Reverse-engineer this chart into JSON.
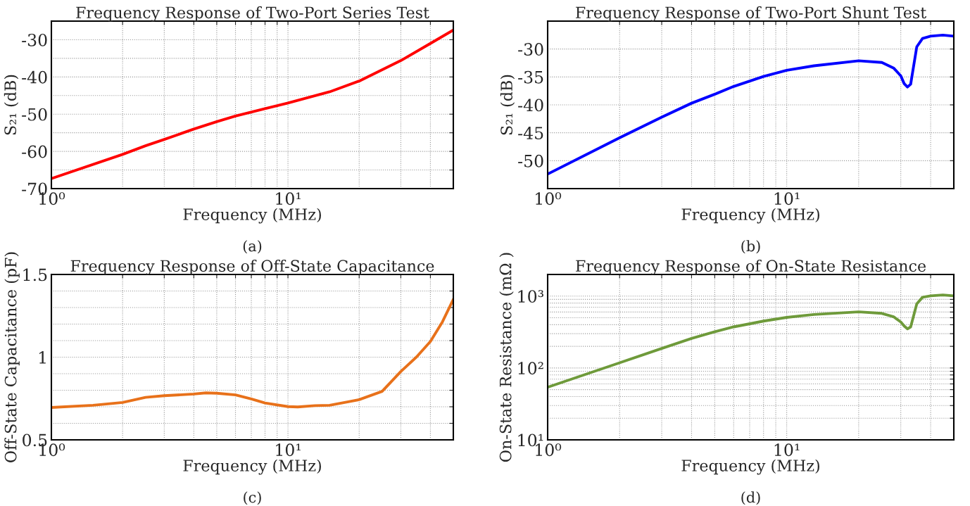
{
  "chart_data": [
    {
      "type": "line",
      "title": "Frequency Response of Two-Port Series Test",
      "xlabel": "Frequency (MHz)",
      "ylabel": "S₂₁ (dB)",
      "annotations": [
        "(a)"
      ],
      "log": "x",
      "grid": true,
      "legend": false,
      "xlim": [
        1,
        50
      ],
      "xticks": [
        {
          "value": 1,
          "label": "10⁰"
        },
        {
          "value": 2,
          "label": null
        },
        {
          "value": 3,
          "label": null
        },
        {
          "value": 4,
          "label": null
        },
        {
          "value": 5,
          "label": null
        },
        {
          "value": 6,
          "label": null
        },
        {
          "value": 7,
          "label": null
        },
        {
          "value": 8,
          "label": null
        },
        {
          "value": 9,
          "label": null
        },
        {
          "value": 10,
          "label": "10¹"
        },
        {
          "value": 20,
          "label": null
        },
        {
          "value": 30,
          "label": null
        },
        {
          "value": 40,
          "label": null
        }
      ],
      "ylim": [
        -70,
        -25
      ],
      "yticks": [
        -70,
        {
          "value": -65,
          "label": null
        },
        -60,
        {
          "value": -55,
          "label": null
        },
        -50,
        {
          "value": -45,
          "label": null
        },
        -40,
        {
          "value": -35,
          "label": null
        },
        -30
      ],
      "series": [
        {
          "color": "#ff0000",
          "x": [
            1,
            2,
            2.5,
            3,
            4,
            5,
            6,
            8,
            10,
            15,
            20,
            30,
            40,
            50
          ],
          "values": [
            -67.3,
            -60.8,
            -58.5,
            -56.8,
            -54.0,
            -52.0,
            -50.5,
            -48.5,
            -47.0,
            -44.0,
            -41.1,
            -35.6,
            -31.0,
            -27.4
          ]
        }
      ]
    },
    {
      "type": "line",
      "title": "Frequency Response of Two-Port Shunt Test",
      "xlabel": "Frequency (MHz)",
      "ylabel": "S₂₁ (dB)",
      "annotations": [
        "(b)"
      ],
      "log": "x",
      "grid": true,
      "legend": false,
      "xlim": [
        1,
        50
      ],
      "xticks": [
        {
          "value": 1,
          "label": "10⁰"
        },
        {
          "value": 2,
          "label": null
        },
        {
          "value": 3,
          "label": null
        },
        {
          "value": 4,
          "label": null
        },
        {
          "value": 5,
          "label": null
        },
        {
          "value": 6,
          "label": null
        },
        {
          "value": 7,
          "label": null
        },
        {
          "value": 8,
          "label": null
        },
        {
          "value": 9,
          "label": null
        },
        {
          "value": 10,
          "label": "10¹"
        },
        {
          "value": 20,
          "label": null
        },
        {
          "value": 30,
          "label": null
        },
        {
          "value": 40,
          "label": null
        }
      ],
      "ylim": [
        -55,
        -25
      ],
      "yticks": [
        -50,
        -45,
        -40,
        -35,
        -30
      ],
      "series": [
        {
          "color": "#0000ff",
          "x": [
            1,
            2,
            3,
            4,
            5,
            6,
            8,
            10,
            13,
            20,
            25,
            28,
            30,
            31,
            32,
            33,
            35,
            37,
            40,
            45,
            50
          ],
          "values": [
            -52.4,
            -45.9,
            -42.2,
            -39.7,
            -38.1,
            -36.7,
            -34.9,
            -33.8,
            -33.0,
            -32.1,
            -32.4,
            -33.4,
            -34.8,
            -36.2,
            -36.8,
            -36.3,
            -29.6,
            -28.1,
            -27.7,
            -27.5,
            -27.7
          ]
        }
      ]
    },
    {
      "type": "line",
      "title": "Frequency Response of Off-State Capacitance",
      "xlabel": "Frequency (MHz)",
      "ylabel": "Off-State Capacitance (pF)",
      "annotations": [
        "(c)"
      ],
      "log": "x",
      "grid": true,
      "legend": false,
      "xlim": [
        1,
        50
      ],
      "xticks": [
        {
          "value": 1,
          "label": "10⁰"
        },
        {
          "value": 2,
          "label": null
        },
        {
          "value": 3,
          "label": null
        },
        {
          "value": 4,
          "label": null
        },
        {
          "value": 5,
          "label": null
        },
        {
          "value": 6,
          "label": null
        },
        {
          "value": 7,
          "label": null
        },
        {
          "value": 8,
          "label": null
        },
        {
          "value": 9,
          "label": null
        },
        {
          "value": 10,
          "label": "10¹"
        },
        {
          "value": 20,
          "label": null
        },
        {
          "value": 30,
          "label": null
        },
        {
          "value": 40,
          "label": null
        }
      ],
      "ylim": [
        0.5,
        1.5
      ],
      "yticks": [
        0.5,
        {
          "value": 0.6,
          "label": null
        },
        {
          "value": 0.7,
          "label": null
        },
        {
          "value": 0.8,
          "label": null
        },
        {
          "value": 0.9,
          "label": null
        },
        1,
        {
          "value": 1.1,
          "label": null
        },
        {
          "value": 1.2,
          "label": null
        },
        {
          "value": 1.3,
          "label": null
        },
        {
          "value": 1.4,
          "label": null
        },
        1.5
      ],
      "series": [
        {
          "color": "#e8711a",
          "x": [
            1,
            1.5,
            2,
            2.5,
            3,
            4,
            4.5,
            5,
            6,
            7,
            8,
            10,
            11,
            13,
            15,
            18,
            20,
            25,
            30,
            35,
            40,
            45,
            50
          ],
          "values": [
            0.696,
            0.709,
            0.726,
            0.757,
            0.767,
            0.777,
            0.784,
            0.782,
            0.772,
            0.747,
            0.723,
            0.701,
            0.699,
            0.707,
            0.709,
            0.73,
            0.743,
            0.793,
            0.913,
            1.002,
            1.095,
            1.214,
            1.35
          ]
        }
      ]
    },
    {
      "type": "line",
      "title": "Frequency Response of On-State Resistance",
      "xlabel": "Frequency (MHz)",
      "ylabel": "On-State Resistance (mΩ )",
      "annotations": [
        "(d)"
      ],
      "log": "xy",
      "grid": true,
      "legend": false,
      "xlim": [
        1,
        50
      ],
      "xticks": [
        {
          "value": 1,
          "label": "10⁰"
        },
        {
          "value": 2,
          "label": null
        },
        {
          "value": 3,
          "label": null
        },
        {
          "value": 4,
          "label": null
        },
        {
          "value": 5,
          "label": null
        },
        {
          "value": 6,
          "label": null
        },
        {
          "value": 7,
          "label": null
        },
        {
          "value": 8,
          "label": null
        },
        {
          "value": 9,
          "label": null
        },
        {
          "value": 10,
          "label": "10¹"
        },
        {
          "value": 20,
          "label": null
        },
        {
          "value": 30,
          "label": null
        },
        {
          "value": 40,
          "label": null
        }
      ],
      "ylim": [
        10,
        2000
      ],
      "yticks": [
        {
          "value": 10,
          "label": "10¹"
        },
        {
          "value": 20,
          "label": null
        },
        {
          "value": 30,
          "label": null
        },
        {
          "value": 40,
          "label": null
        },
        {
          "value": 50,
          "label": null
        },
        {
          "value": 60,
          "label": null
        },
        {
          "value": 70,
          "label": null
        },
        {
          "value": 80,
          "label": null
        },
        {
          "value": 90,
          "label": null
        },
        {
          "value": 100,
          "label": "10²"
        },
        {
          "value": 200,
          "label": null
        },
        {
          "value": 300,
          "label": null
        },
        {
          "value": 400,
          "label": null
        },
        {
          "value": 500,
          "label": null
        },
        {
          "value": 600,
          "label": null
        },
        {
          "value": 700,
          "label": null
        },
        {
          "value": 800,
          "label": null
        },
        {
          "value": 900,
          "label": null
        },
        {
          "value": 1000,
          "label": "10³"
        }
      ],
      "series": [
        {
          "color": "#6e9a3a",
          "x": [
            1,
            2,
            3,
            4,
            5,
            6,
            8,
            10,
            13,
            20,
            25,
            28,
            30,
            31,
            32,
            33,
            35,
            37,
            40,
            45,
            50
          ],
          "values": [
            54,
            118,
            187,
            258,
            319,
            373,
            449,
            506,
            555,
            603,
            575,
            515,
            437,
            384,
            350,
            373,
            780,
            964,
            1009,
            1038,
            1009
          ]
        }
      ]
    }
  ]
}
